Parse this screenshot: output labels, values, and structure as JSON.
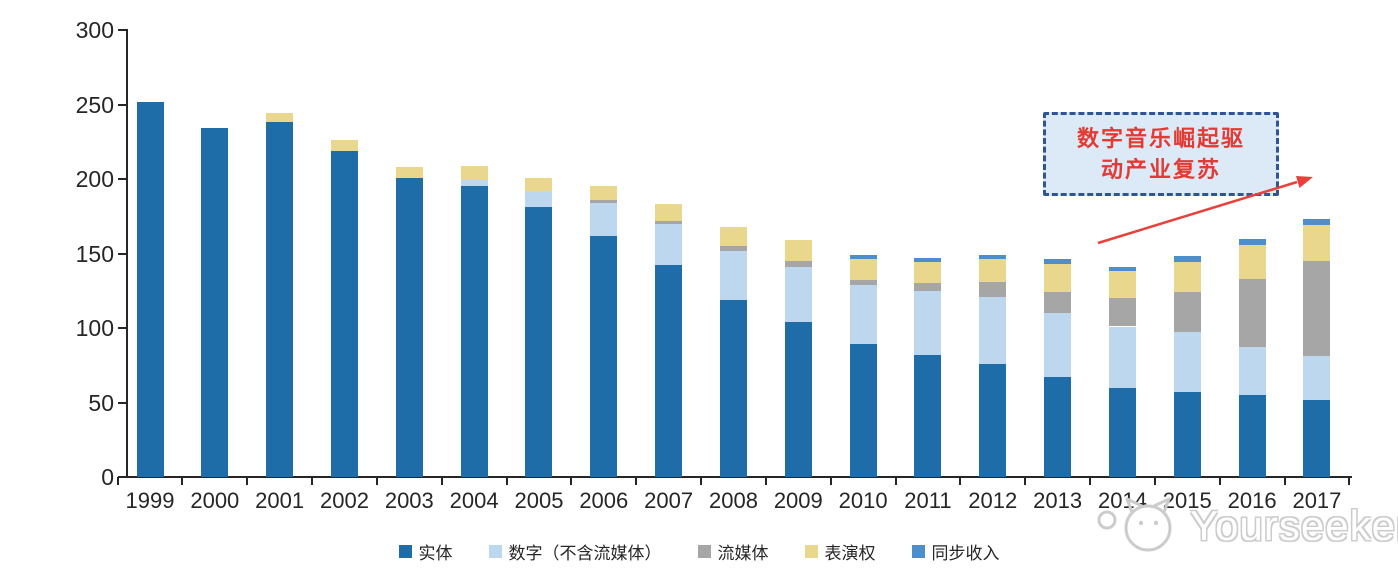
{
  "chart_data": {
    "type": "bar",
    "stacked": true,
    "title": "",
    "xlabel": "",
    "ylabel": "",
    "categories": [
      "1999",
      "2000",
      "2001",
      "2002",
      "2003",
      "2004",
      "2005",
      "2006",
      "2007",
      "2008",
      "2009",
      "2010",
      "2011",
      "2012",
      "2013",
      "2014",
      "2015",
      "2016",
      "2017"
    ],
    "series": [
      {
        "name": "实体",
        "color": "#1E6CA8",
        "values": [
          252,
          234,
          238,
          219,
          201,
          195,
          181,
          162,
          142,
          119,
          104,
          89,
          82,
          76,
          67,
          60,
          57,
          55,
          52
        ]
      },
      {
        "name": "数字（不含流媒体）",
        "color": "#BDD7EE",
        "values": [
          0,
          0,
          0,
          0,
          0,
          4,
          11,
          22,
          28,
          33,
          37,
          40,
          43,
          45,
          43,
          41,
          40,
          32,
          29
        ]
      },
      {
        "name": "流媒体",
        "color": "#A6A6A6",
        "values": [
          0,
          0,
          0,
          0,
          0,
          0,
          0,
          2,
          2,
          3,
          4,
          3,
          5,
          10,
          14,
          19,
          27,
          46,
          64
        ]
      },
      {
        "name": "表演权",
        "color": "#E9D78E",
        "values": [
          0,
          0,
          6,
          7,
          7,
          10,
          9,
          9,
          11,
          13,
          14,
          14,
          14,
          15,
          19,
          18,
          20,
          23,
          24
        ]
      },
      {
        "name": "同步收入",
        "color": "#4E8ECB",
        "values": [
          0,
          0,
          0,
          0,
          0,
          0,
          0,
          0,
          0,
          0,
          0,
          3,
          3,
          3,
          3,
          3,
          4,
          4,
          4
        ]
      }
    ],
    "ylim": [
      0,
      300
    ],
    "yticks": [
      0,
      50,
      100,
      150,
      200,
      250,
      300
    ],
    "grid": false,
    "legend_position": "bottom"
  },
  "annotation": {
    "line1": "数字音乐崛起驱",
    "line2": "动产业复苏",
    "box_fill": "#DCE9F6",
    "border_color": "#2F5597",
    "text_color": "#E33B33",
    "arrow_color": "#E8413C"
  },
  "watermark": {
    "text": "Yourseeker",
    "logo": "cat-logo-icon",
    "color": "#CCCCCC"
  }
}
